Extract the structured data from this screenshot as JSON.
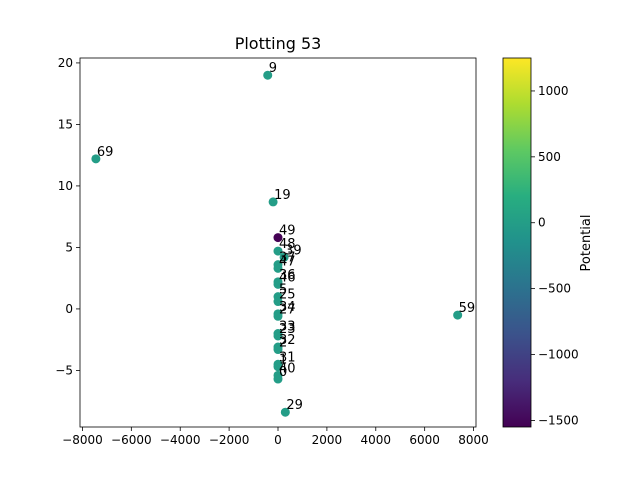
{
  "chart_data": {
    "type": "scatter",
    "title": "Plotting 53",
    "xlabel": "",
    "ylabel": "",
    "xlim": [
      -8100,
      8100
    ],
    "ylim": [
      -9.6,
      20.4
    ],
    "xticks": [
      -8000,
      -6000,
      -4000,
      -2000,
      0,
      2000,
      4000,
      6000,
      8000
    ],
    "xtick_labels": [
      "−8000",
      "−6000",
      "−4000",
      "−2000",
      "0",
      "2000",
      "4000",
      "6000",
      "8000"
    ],
    "yticks": [
      -5,
      0,
      5,
      10,
      15,
      20
    ],
    "ytick_labels": [
      "−5",
      "0",
      "5",
      "10",
      "15",
      "20"
    ],
    "grid": false,
    "colormap": "viridis",
    "colorbar": {
      "label": "Potential",
      "vmin": -1550,
      "vmax": 1250,
      "ticks": [
        -1500,
        -1000,
        -500,
        0,
        500,
        1000
      ],
      "tick_labels": [
        "−1500",
        "−1000",
        "−500",
        "0",
        "500",
        "1000"
      ]
    },
    "point_color": "#21918c",
    "points": [
      {
        "x": -420,
        "y": 19.0,
        "label": "9",
        "value": 0
      },
      {
        "x": -7450,
        "y": 12.2,
        "label": "69",
        "value": 0
      },
      {
        "x": -200,
        "y": 8.7,
        "label": "19",
        "value": 0
      },
      {
        "x": 7350,
        "y": -0.5,
        "label": "59",
        "value": 0
      },
      {
        "x": 300,
        "y": -8.4,
        "label": "29",
        "value": 0
      },
      {
        "x": 0,
        "y": 5.8,
        "label": "49",
        "value": -1550
      },
      {
        "x": 0,
        "y": 4.7,
        "label": "48",
        "value": 0
      },
      {
        "x": 250,
        "y": 4.2,
        "label": "39",
        "value": 0
      },
      {
        "x": 0,
        "y": 3.6,
        "label": "37",
        "value": 0
      },
      {
        "x": 0,
        "y": 3.3,
        "label": "47",
        "value": 0
      },
      {
        "x": 0,
        "y": 2.2,
        "label": "36",
        "value": 0
      },
      {
        "x": 0,
        "y": 2.0,
        "label": "46",
        "value": 0
      },
      {
        "x": 0,
        "y": 1.0,
        "label": "5",
        "value": 0
      },
      {
        "x": 0,
        "y": 0.6,
        "label": "25",
        "value": 0
      },
      {
        "x": 0,
        "y": -0.4,
        "label": "34",
        "value": 0
      },
      {
        "x": 0,
        "y": -0.6,
        "label": "27",
        "value": 0
      },
      {
        "x": 0,
        "y": -2.0,
        "label": "33",
        "value": 0
      },
      {
        "x": 0,
        "y": -2.2,
        "label": "23",
        "value": 0
      },
      {
        "x": 0,
        "y": -3.1,
        "label": "32",
        "value": 0
      },
      {
        "x": 0,
        "y": -3.3,
        "label": "2",
        "value": 0
      },
      {
        "x": 0,
        "y": -4.5,
        "label": "31",
        "value": 0
      },
      {
        "x": 0,
        "y": -4.7,
        "label": "1",
        "value": 0
      },
      {
        "x": 0,
        "y": -5.4,
        "label": "40",
        "value": 0
      },
      {
        "x": 0,
        "y": -5.7,
        "label": "0",
        "value": 0
      }
    ]
  }
}
